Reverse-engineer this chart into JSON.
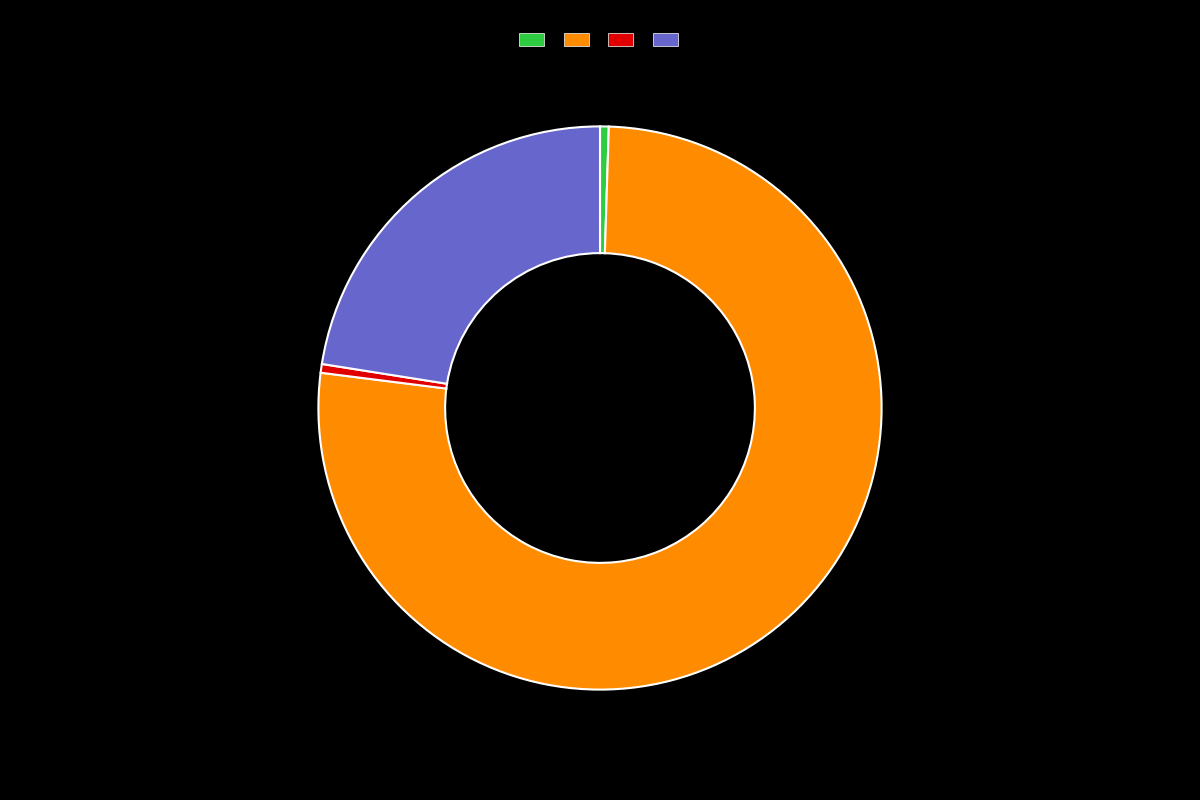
{
  "values": [
    0.5,
    76.5,
    0.5,
    22.5
  ],
  "colors": [
    "#2ecc40",
    "#ff8c00",
    "#e00000",
    "#6666cc"
  ],
  "legend_colors": [
    "#2ecc40",
    "#ff8c00",
    "#e00000",
    "#6666cc"
  ],
  "background_color": "#000000",
  "wedge_edge_color": "#ffffff",
  "donut_hole_ratio": 0.55,
  "figsize": [
    12,
    8
  ]
}
